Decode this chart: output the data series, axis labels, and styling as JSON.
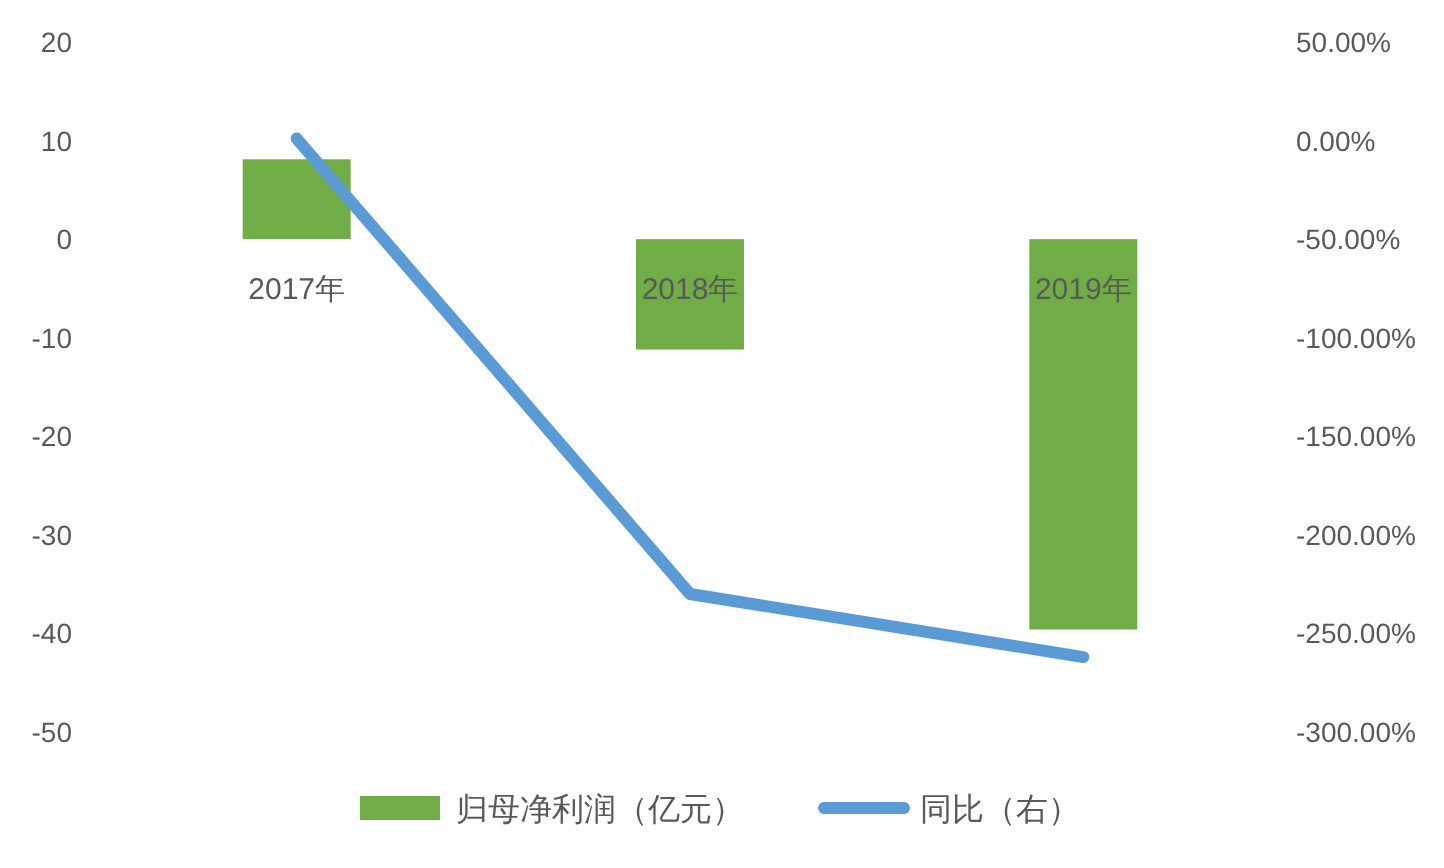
{
  "chart_data": {
    "type": "bar",
    "categories": [
      "2017年",
      "2018年",
      "2019年"
    ],
    "series": [
      {
        "name": "归母净利润（亿元）",
        "color": "#70ad47",
        "values": [
          8.1,
          -11.2,
          -39.6
        ]
      },
      {
        "name": "同比（右）",
        "type": "line",
        "axis": "y2",
        "color": "#5b9bd5",
        "values": [
          1,
          -230,
          -262
        ]
      }
    ],
    "ylim": [
      -50,
      20
    ],
    "yticks": [
      -50,
      -40,
      -30,
      -20,
      -10,
      0,
      10,
      20
    ],
    "y2lim": [
      -300,
      50
    ],
    "y2ticks": [
      {
        "value": -300,
        "label": "-300.00%"
      },
      {
        "value": -250,
        "label": "-250.00%"
      },
      {
        "value": -200,
        "label": "-200.00%"
      },
      {
        "value": -150,
        "label": "-150.00%"
      },
      {
        "value": -100,
        "label": "-100.00%"
      },
      {
        "value": -50,
        "label": "-50.00%"
      },
      {
        "value": 0,
        "label": "0.00%"
      },
      {
        "value": 50,
        "label": "50.00%"
      }
    ],
    "legend": "bottom"
  }
}
